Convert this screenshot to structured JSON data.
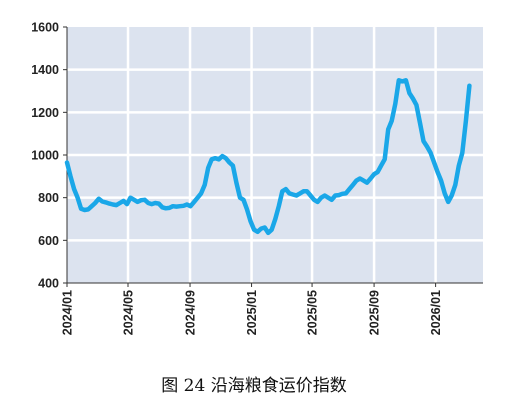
{
  "caption": "图 24 沿海粮食运价指数",
  "chart_data": {
    "type": "line",
    "title": "",
    "xlabel": "",
    "ylabel": "",
    "ylim": [
      400,
      1600
    ],
    "yticks": [
      400,
      600,
      800,
      1000,
      1200,
      1400,
      1600
    ],
    "xlim": [
      "2024-01-01",
      "2026-04-05"
    ],
    "xticks": [
      {
        "date": "2024-01-01",
        "label": "2024/01"
      },
      {
        "date": "2024-05-01",
        "label": "2024/05"
      },
      {
        "date": "2024-09-01",
        "label": "2024/09"
      },
      {
        "date": "2025-01-01",
        "label": "2025/01"
      },
      {
        "date": "2025-05-01",
        "label": "2025/05"
      },
      {
        "date": "2025-09-01",
        "label": "2025/09"
      },
      {
        "date": "2026-01-01",
        "label": "2026/01"
      }
    ],
    "grid": true,
    "legend": false,
    "colors": {
      "line": "#1aa7e8",
      "plot_bg": "#dce3ef",
      "grid": "#ffffff"
    },
    "series": [
      {
        "points": [
          [
            "2024-01-01",
            965
          ],
          [
            "2024-01-08",
            900
          ],
          [
            "2024-01-15",
            840
          ],
          [
            "2024-01-22",
            800
          ],
          [
            "2024-01-29",
            748
          ],
          [
            "2024-02-05",
            742
          ],
          [
            "2024-02-12",
            745
          ],
          [
            "2024-02-19",
            760
          ],
          [
            "2024-02-26",
            775
          ],
          [
            "2024-03-04",
            795
          ],
          [
            "2024-03-11",
            782
          ],
          [
            "2024-03-18",
            778
          ],
          [
            "2024-03-25",
            772
          ],
          [
            "2024-04-01",
            768
          ],
          [
            "2024-04-08",
            765
          ],
          [
            "2024-04-15",
            775
          ],
          [
            "2024-04-22",
            785
          ],
          [
            "2024-04-29",
            770
          ],
          [
            "2024-05-06",
            800
          ],
          [
            "2024-05-13",
            790
          ],
          [
            "2024-05-20",
            780
          ],
          [
            "2024-05-27",
            788
          ],
          [
            "2024-06-03",
            790
          ],
          [
            "2024-06-10",
            775
          ],
          [
            "2024-06-17",
            770
          ],
          [
            "2024-06-24",
            775
          ],
          [
            "2024-07-01",
            772
          ],
          [
            "2024-07-08",
            755
          ],
          [
            "2024-07-15",
            750
          ],
          [
            "2024-07-22",
            752
          ],
          [
            "2024-07-29",
            760
          ],
          [
            "2024-08-05",
            758
          ],
          [
            "2024-08-12",
            760
          ],
          [
            "2024-08-19",
            762
          ],
          [
            "2024-08-26",
            768
          ],
          [
            "2024-09-02",
            760
          ],
          [
            "2024-09-09",
            780
          ],
          [
            "2024-09-16",
            800
          ],
          [
            "2024-09-23",
            820
          ],
          [
            "2024-09-30",
            860
          ],
          [
            "2024-10-07",
            940
          ],
          [
            "2024-10-14",
            980
          ],
          [
            "2024-10-21",
            985
          ],
          [
            "2024-10-28",
            980
          ],
          [
            "2024-11-04",
            995
          ],
          [
            "2024-11-11",
            985
          ],
          [
            "2024-11-18",
            965
          ],
          [
            "2024-11-25",
            950
          ],
          [
            "2024-12-02",
            870
          ],
          [
            "2024-12-09",
            800
          ],
          [
            "2024-12-16",
            790
          ],
          [
            "2024-12-23",
            745
          ],
          [
            "2024-12-30",
            690
          ],
          [
            "2025-01-06",
            650
          ],
          [
            "2025-01-13",
            640
          ],
          [
            "2025-01-20",
            655
          ],
          [
            "2025-01-27",
            660
          ],
          [
            "2025-02-03",
            635
          ],
          [
            "2025-02-10",
            650
          ],
          [
            "2025-02-17",
            700
          ],
          [
            "2025-02-24",
            760
          ],
          [
            "2025-03-03",
            830
          ],
          [
            "2025-03-10",
            840
          ],
          [
            "2025-03-17",
            820
          ],
          [
            "2025-03-24",
            815
          ],
          [
            "2025-03-31",
            810
          ],
          [
            "2025-04-07",
            820
          ],
          [
            "2025-04-14",
            830
          ],
          [
            "2025-04-21",
            830
          ],
          [
            "2025-04-28",
            810
          ],
          [
            "2025-05-05",
            790
          ],
          [
            "2025-05-12",
            780
          ],
          [
            "2025-05-19",
            800
          ],
          [
            "2025-05-26",
            810
          ],
          [
            "2025-06-02",
            800
          ],
          [
            "2025-06-09",
            790
          ],
          [
            "2025-06-16",
            810
          ],
          [
            "2025-06-23",
            812
          ],
          [
            "2025-06-30",
            818
          ],
          [
            "2025-07-07",
            820
          ],
          [
            "2025-07-14",
            840
          ],
          [
            "2025-07-21",
            860
          ],
          [
            "2025-07-28",
            880
          ],
          [
            "2025-08-04",
            890
          ],
          [
            "2025-08-11",
            880
          ],
          [
            "2025-08-18",
            870
          ],
          [
            "2025-08-25",
            890
          ],
          [
            "2025-09-01",
            910
          ],
          [
            "2025-09-08",
            920
          ],
          [
            "2025-09-15",
            950
          ],
          [
            "2025-09-22",
            980
          ],
          [
            "2025-09-29",
            1120
          ],
          [
            "2025-10-06",
            1160
          ],
          [
            "2025-10-13",
            1240
          ],
          [
            "2025-10-20",
            1350
          ],
          [
            "2025-10-27",
            1345
          ],
          [
            "2025-11-03",
            1350
          ],
          [
            "2025-11-10",
            1290
          ],
          [
            "2025-11-17",
            1265
          ],
          [
            "2025-11-24",
            1235
          ],
          [
            "2025-12-01",
            1150
          ],
          [
            "2025-12-08",
            1065
          ],
          [
            "2025-12-15",
            1040
          ],
          [
            "2025-12-22",
            1010
          ],
          [
            "2025-12-29",
            965
          ],
          [
            "2026-01-05",
            920
          ],
          [
            "2026-01-12",
            880
          ],
          [
            "2026-01-19",
            820
          ],
          [
            "2026-01-26",
            780
          ],
          [
            "2026-02-02",
            810
          ],
          [
            "2026-02-09",
            860
          ],
          [
            "2026-02-16",
            950
          ],
          [
            "2026-02-23",
            1010
          ],
          [
            "2026-03-02",
            1160
          ],
          [
            "2026-03-09",
            1325
          ]
        ]
      }
    ]
  }
}
